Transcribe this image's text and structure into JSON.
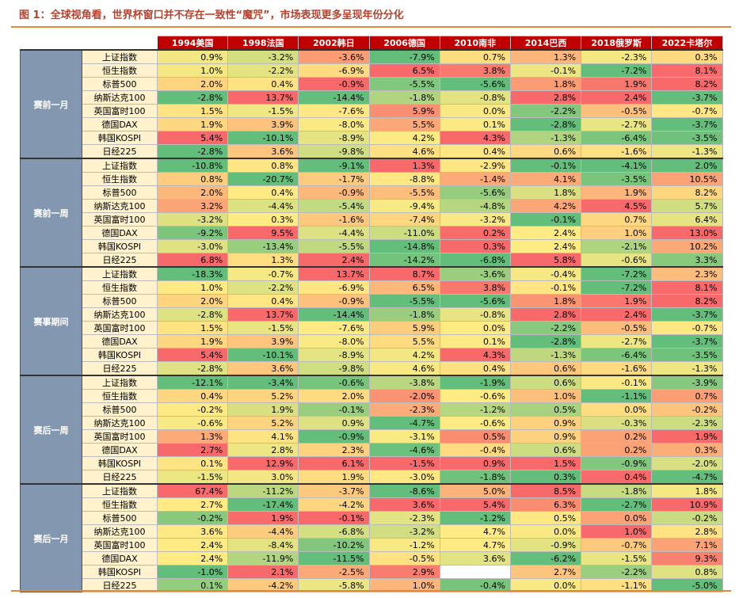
{
  "header": {
    "title": "图 1：全球视角看，世界杯窗口并不存在一致性“魔咒”，市场表现更多呈现年份分化"
  },
  "table": {
    "columns": [
      "1994美国",
      "1998法国",
      "2002韩日",
      "2006德国",
      "2010南非",
      "2014巴西",
      "2018俄罗斯",
      "2022卡塔尔"
    ],
    "groups": [
      {
        "label": "赛前一月",
        "rows": [
          {
            "index": "上证指数",
            "cells": [
              "0.9%",
              "-3.2%",
              "-3.6%",
              "-7.9%",
              "0.7%",
              "1.3%",
              "-2.3%",
              "0.3%"
            ]
          },
          {
            "index": "恒生指数",
            "cells": [
              "1.0%",
              "-2.2%",
              "-6.9%",
              "6.5%",
              "3.8%",
              "-0.1%",
              "-7.2%",
              "8.1%"
            ]
          },
          {
            "index": "标普500",
            "cells": [
              "2.0%",
              "0.4%",
              "-0.9%",
              "-5.5%",
              "-5.6%",
              "1.8%",
              "1.9%",
              "8.2%"
            ]
          },
          {
            "index": "纳斯达克100",
            "cells": [
              "-2.8%",
              "13.7%",
              "-14.4%",
              "-1.8%",
              "-0.8%",
              "2.8%",
              "2.4%",
              "-3.7%"
            ]
          },
          {
            "index": "英国富时100",
            "cells": [
              "1.5%",
              "-1.5%",
              "-7.6%",
              "5.9%",
              "0.0%",
              "-2.2%",
              "-0.5%",
              "-0.7%"
            ]
          },
          {
            "index": "德国DAX",
            "cells": [
              "1.9%",
              "3.9%",
              "-8.0%",
              "5.5%",
              "0.1%",
              "-2.8%",
              "-2.7%",
              "-3.7%"
            ]
          },
          {
            "index": "韩国KOSPI",
            "cells": [
              "5.4%",
              "-10.1%",
              "-8.9%",
              "4.2%",
              "4.3%",
              "-1.3%",
              "-6.4%",
              "-3.5%"
            ]
          },
          {
            "index": "日经225",
            "cells": [
              "-2.8%",
              "3.6%",
              "-9.8%",
              "4.6%",
              "0.4%",
              "0.6%",
              "-1.6%",
              "-1.3%"
            ]
          }
        ]
      },
      {
        "label": "赛前一周",
        "rows": [
          {
            "index": "上证指数",
            "cells": [
              "-10.8%",
              "0.8%",
              "-9.1%",
              "1.3%",
              "-2.9%",
              "-0.1%",
              "-4.1%",
              "2.0%"
            ]
          },
          {
            "index": "恒生指数",
            "cells": [
              "0.8%",
              "-20.7%",
              "-1.7%",
              "-8.8%",
              "-1.4%",
              "4.1%",
              "-3.5%",
              "10.5%"
            ]
          },
          {
            "index": "标普500",
            "cells": [
              "2.0%",
              "0.4%",
              "-0.9%",
              "-5.5%",
              "-5.6%",
              "1.8%",
              "1.9%",
              "8.2%"
            ]
          },
          {
            "index": "纳斯达克100",
            "cells": [
              "3.2%",
              "-4.4%",
              "-5.4%",
              "-9.4%",
              "-4.8%",
              "4.2%",
              "4.5%",
              "5.7%"
            ]
          },
          {
            "index": "英国富时100",
            "cells": [
              "-3.2%",
              "0.3%",
              "-1.6%",
              "-7.4%",
              "-3.2%",
              "-0.1%",
              "0.7%",
              "6.4%"
            ]
          },
          {
            "index": "德国DAX",
            "cells": [
              "-9.2%",
              "9.5%",
              "-4.4%",
              "-11.0%",
              "0.2%",
              "2.4%",
              "1.0%",
              "13.0%"
            ]
          },
          {
            "index": "韩国KOSPI",
            "cells": [
              "-3.0%",
              "-13.4%",
              "-5.5%",
              "-14.8%",
              "0.3%",
              "2.4%",
              "-2.1%",
              "10.2%"
            ]
          },
          {
            "index": "日经225",
            "cells": [
              "6.8%",
              "1.3%",
              "2.4%",
              "-14.2%",
              "-6.8%",
              "5.8%",
              "-0.6%",
              "3.3%"
            ]
          }
        ]
      },
      {
        "label": "赛事期间",
        "rows": [
          {
            "index": "上证指数",
            "cells": [
              "-18.3%",
              "-0.7%",
              "13.7%",
              "8.7%",
              "-3.6%",
              "-0.4%",
              "-7.2%",
              "2.3%"
            ]
          },
          {
            "index": "恒生指数",
            "cells": [
              "1.0%",
              "-2.2%",
              "-6.9%",
              "6.5%",
              "3.8%",
              "-0.1%",
              "-7.2%",
              "8.1%"
            ]
          },
          {
            "index": "标普500",
            "cells": [
              "2.0%",
              "0.4%",
              "-0.9%",
              "-5.5%",
              "-5.6%",
              "1.8%",
              "1.9%",
              "8.2%"
            ]
          },
          {
            "index": "纳斯达克100",
            "cells": [
              "-2.8%",
              "13.7%",
              "-14.4%",
              "-1.8%",
              "-0.8%",
              "2.8%",
              "2.4%",
              "-3.7%"
            ]
          },
          {
            "index": "英国富时100",
            "cells": [
              "1.5%",
              "-1.5%",
              "-7.6%",
              "5.9%",
              "0.0%",
              "-2.2%",
              "-0.5%",
              "-0.7%"
            ]
          },
          {
            "index": "德国DAX",
            "cells": [
              "1.9%",
              "3.9%",
              "-8.0%",
              "5.5%",
              "0.1%",
              "-2.8%",
              "-2.7%",
              "-3.7%"
            ]
          },
          {
            "index": "韩国KOSPI",
            "cells": [
              "5.4%",
              "-10.1%",
              "-8.9%",
              "4.2%",
              "4.3%",
              "-1.3%",
              "-6.4%",
              "-3.5%"
            ]
          },
          {
            "index": "日经225",
            "cells": [
              "-2.8%",
              "3.6%",
              "-9.8%",
              "4.6%",
              "0.4%",
              "0.6%",
              "-1.6%",
              "-1.3%"
            ]
          }
        ]
      },
      {
        "label": "赛后一周",
        "rows": [
          {
            "index": "上证指数",
            "cells": [
              "-12.1%",
              "-3.4%",
              "-0.6%",
              "-3.8%",
              "-1.9%",
              "0.6%",
              "-0.1%",
              "-3.9%"
            ]
          },
          {
            "index": "恒生指数",
            "cells": [
              "0.4%",
              "5.2%",
              "2.0%",
              "-2.0%",
              "-0.6%",
              "1.0%",
              "-1.1%",
              "0.7%"
            ]
          },
          {
            "index": "标普500",
            "cells": [
              "-0.2%",
              "1.9%",
              "-0.1%",
              "-2.3%",
              "-1.2%",
              "0.5%",
              "0.0%",
              "-0.2%"
            ]
          },
          {
            "index": "纳斯达克100",
            "cells": [
              "-0.6%",
              "5.2%",
              "0.9%",
              "-4.7%",
              "-0.6%",
              "0.9%",
              "-0.3%",
              "-2.3%"
            ]
          },
          {
            "index": "英国富时100",
            "cells": [
              "1.3%",
              "4.1%",
              "-0.9%",
              "-3.1%",
              "0.5%",
              "0.9%",
              "0.2%",
              "1.9%"
            ]
          },
          {
            "index": "德国DAX",
            "cells": [
              "2.7%",
              "2.8%",
              "2.3%",
              "-4.6%",
              "-0.4%",
              "0.6%",
              "0.2%",
              "0.3%"
            ]
          },
          {
            "index": "韩国KOSPI",
            "cells": [
              "0.1%",
              "12.9%",
              "6.1%",
              "-1.5%",
              "0.9%",
              "1.5%",
              "-0.9%",
              "-2.0%"
            ]
          },
          {
            "index": "日经225",
            "cells": [
              "-1.5%",
              "3.0%",
              "1.9%",
              "-3.0%",
              "-1.8%",
              "0.3%",
              "0.4%",
              "-4.7%"
            ]
          }
        ]
      },
      {
        "label": "赛后一月",
        "rows": [
          {
            "index": "上证指数",
            "cells": [
              "67.4%",
              "-11.2%",
              "-3.7%",
              "-8.6%",
              "5.0%",
              "8.5%",
              "-1.8%",
              "1.8%"
            ]
          },
          {
            "index": "恒生指数",
            "cells": [
              "2.7%",
              "-17.4%",
              "-4.2%",
              "3.6%",
              "5.4%",
              "6.3%",
              "-2.7%",
              "10.9%"
            ]
          },
          {
            "index": "标普500",
            "cells": [
              "-0.2%",
              "1.9%",
              "-0.1%",
              "-2.3%",
              "-1.2%",
              "0.5%",
              "0.0%",
              "-0.2%"
            ]
          },
          {
            "index": "纳斯达克100",
            "cells": [
              "3.6%",
              "-4.4%",
              "-6.8%",
              "-3.2%",
              "4.7%",
              "0.0%",
              "1.0%",
              "2.8%"
            ]
          },
          {
            "index": "英国富时100",
            "cells": [
              "2.4%",
              "-8.4%",
              "-10.2%",
              "-1.2%",
              "4.7%",
              "-0.9%",
              "-0.7%",
              "7.1%"
            ]
          },
          {
            "index": "德国DAX",
            "cells": [
              "2.4%",
              "-11.9%",
              "-11.5%",
              "-0.5%",
              "3.6%",
              "-6.2%",
              "-1.5%",
              "9.3%"
            ]
          },
          {
            "index": "韩国KOSPI",
            "cells": [
              "-1.0%",
              "2.1%",
              "-2.5%",
              "2.9%",
              null,
              "2.7%",
              "-2.2%",
              "0.8%"
            ]
          },
          {
            "index": "日经225",
            "cells": [
              "0.1%",
              "-4.2%",
              "-5.8%",
              "1.0%",
              "-0.4%",
              "0.0%",
              "-1.1%",
              "-5.0%"
            ]
          }
        ]
      }
    ]
  }
}
